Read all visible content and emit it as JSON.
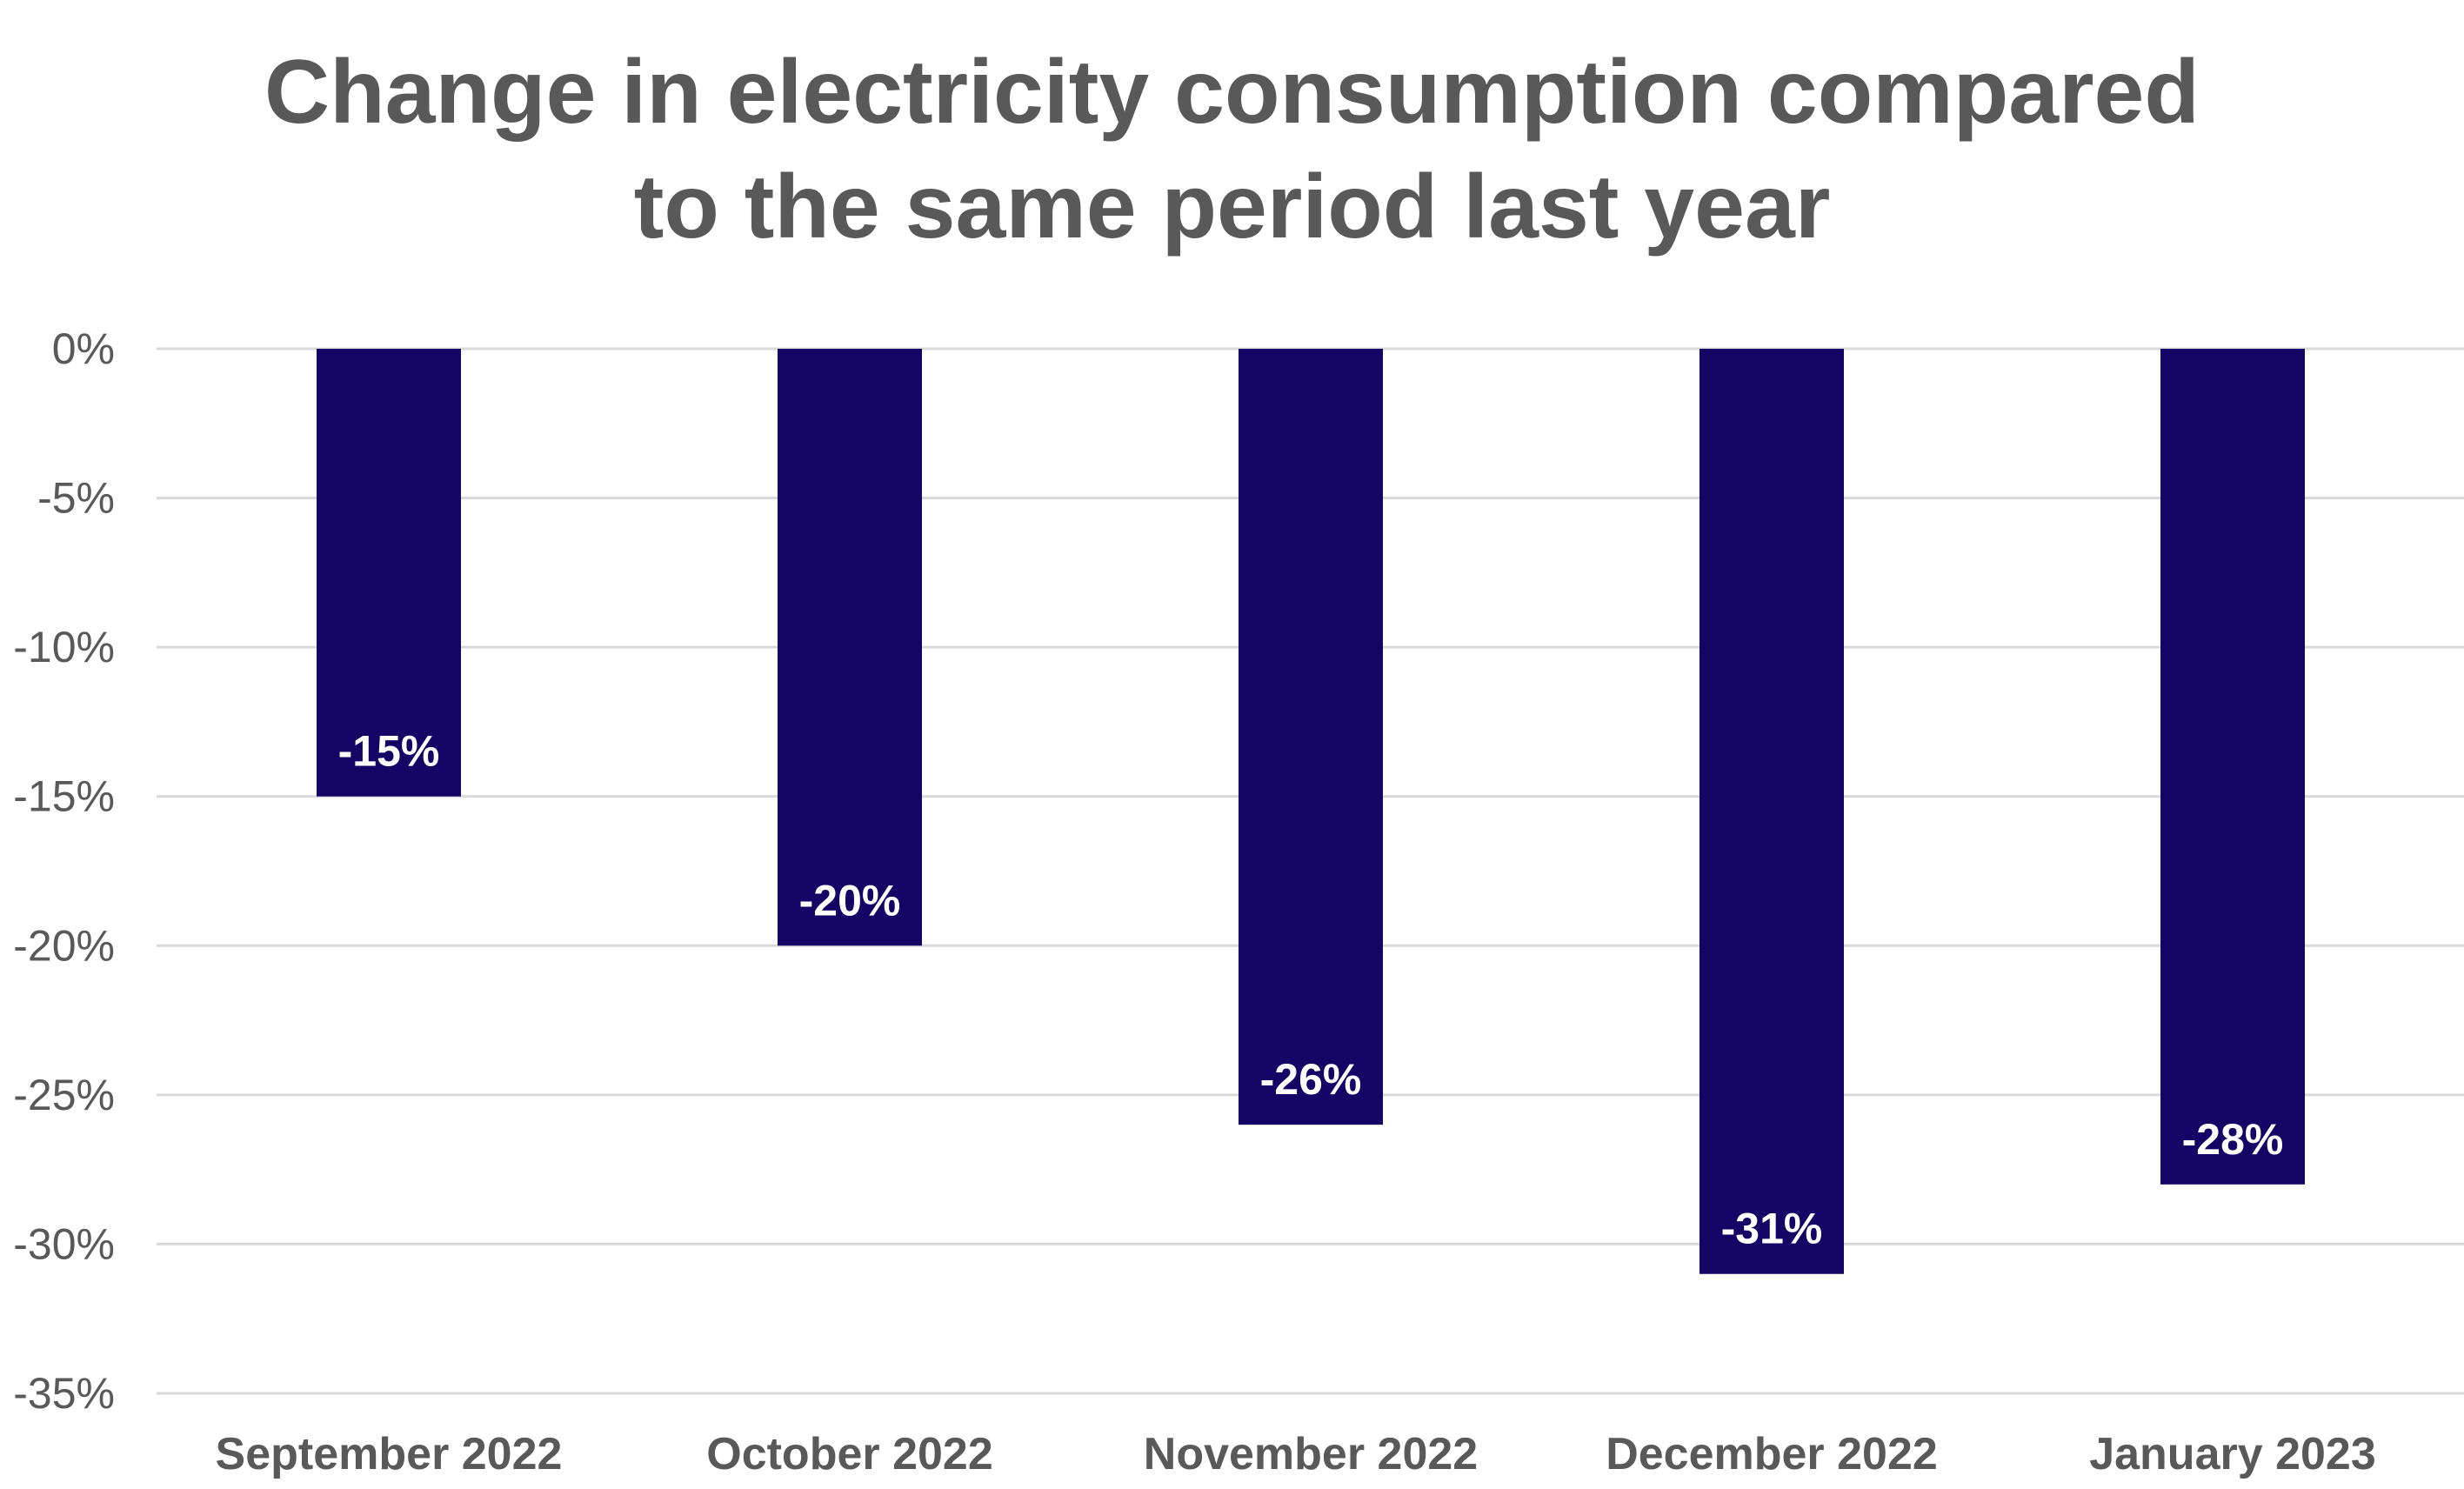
{
  "chart_data": {
    "type": "bar",
    "title_lines": [
      "Change in electricity consumption compared",
      "to the same period last year"
    ],
    "categories": [
      "September 2022",
      "October 2022",
      "November 2022",
      "December 2022",
      "January 2023"
    ],
    "values": [
      -15,
      -20,
      -26,
      -31,
      -28
    ],
    "data_labels": [
      "-15%",
      "-20%",
      "-26%",
      "-31%",
      "-28%"
    ],
    "yticks": [
      0,
      -5,
      -10,
      -15,
      -20,
      -25,
      -30,
      -35
    ],
    "ytick_labels": [
      "0%",
      "-5%",
      "-10%",
      "-15%",
      "-20%",
      "-25%",
      "-30%",
      "-35%"
    ],
    "ylim": [
      -35,
      0
    ],
    "grid": true,
    "legend": "none",
    "colors": {
      "bar": "#130465",
      "grid": "#d9d9d9",
      "text": "#595959",
      "data_label": "#ffffff"
    }
  }
}
